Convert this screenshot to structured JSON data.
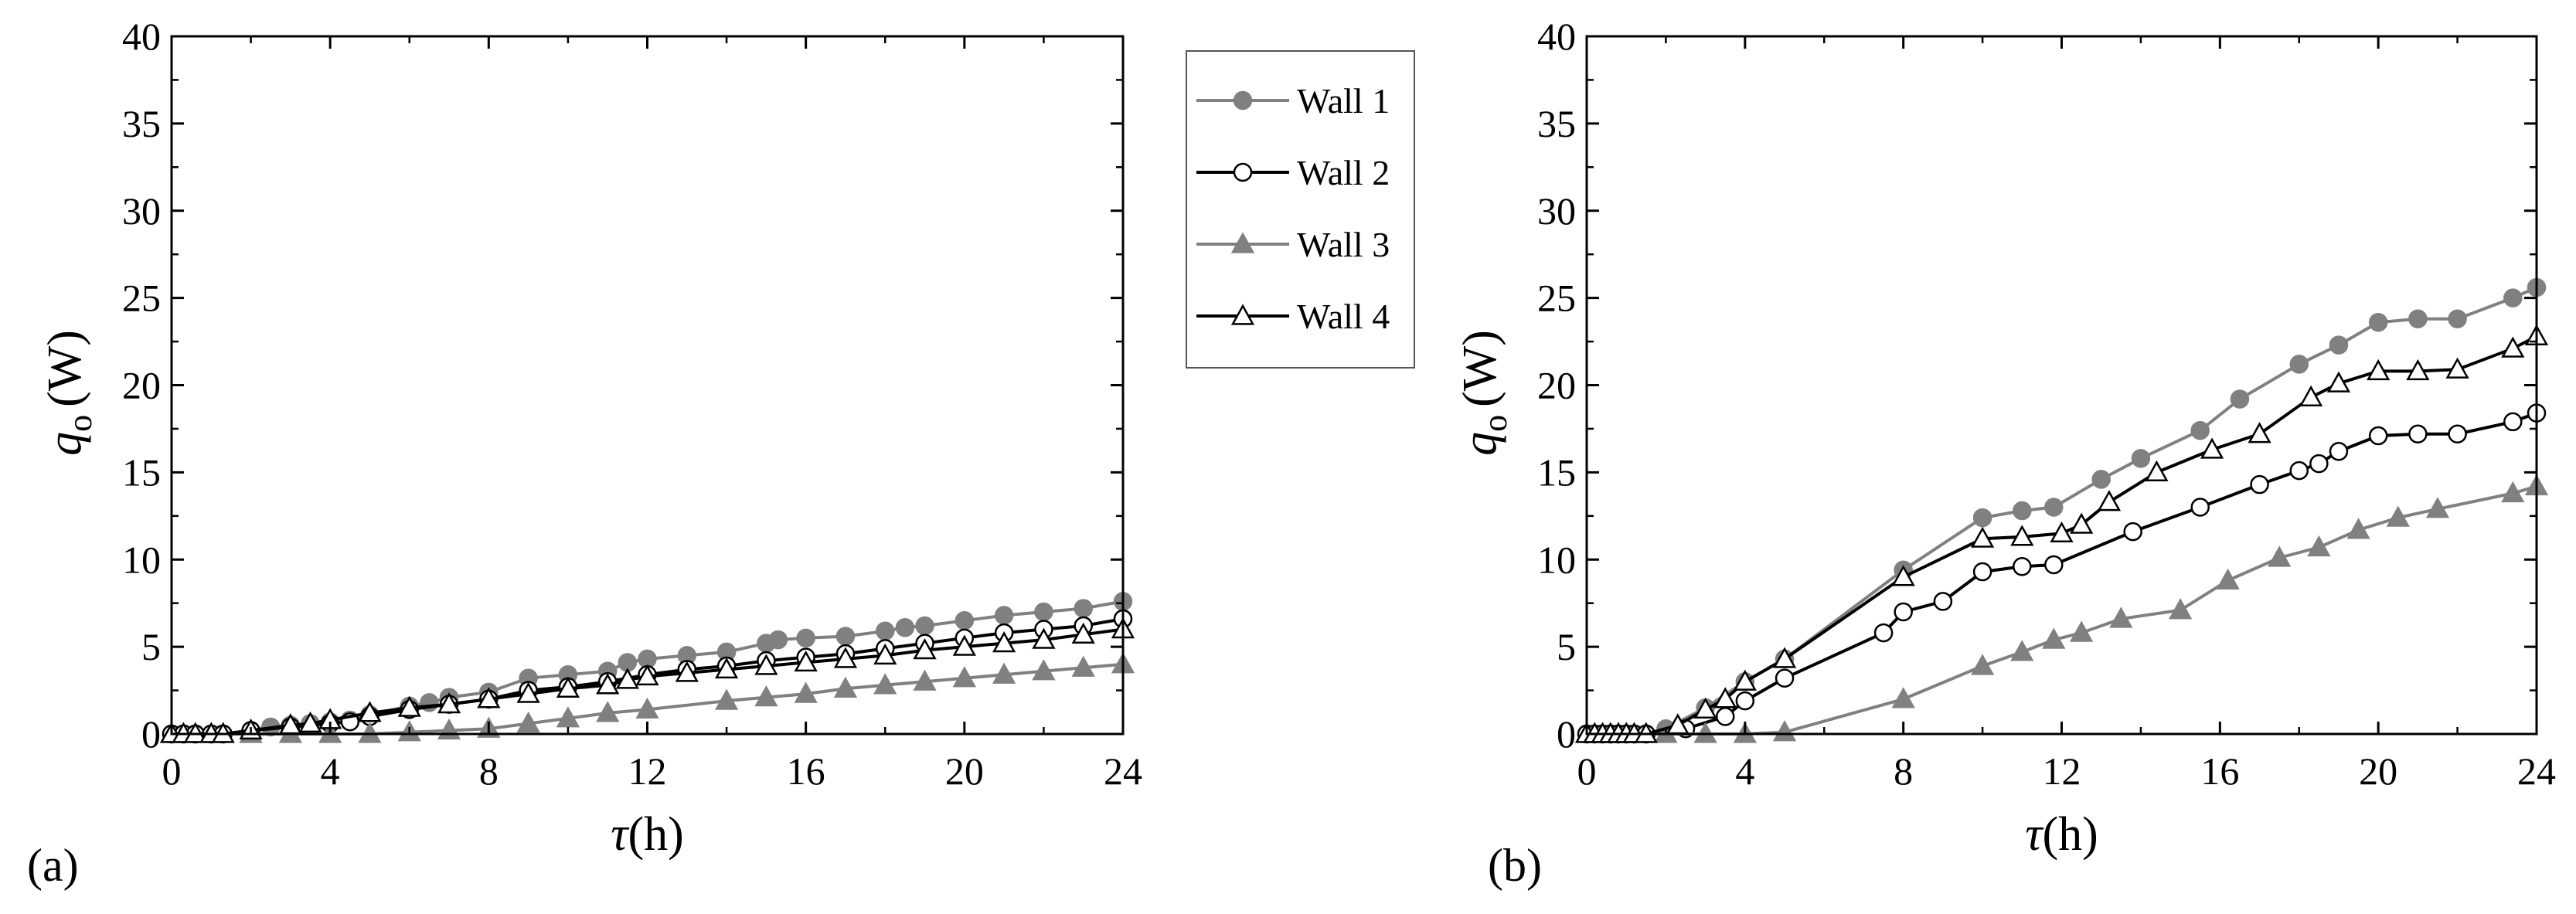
{
  "legend": [
    {
      "label": "Wall 1",
      "color": "#808080",
      "marker": "circle",
      "filled": true
    },
    {
      "label": "Wall 2",
      "color": "#000000",
      "marker": "circle",
      "filled": false
    },
    {
      "label": "Wall 3",
      "color": "#808080",
      "marker": "triangle",
      "filled": true
    },
    {
      "label": "Wall 4",
      "color": "#000000",
      "marker": "triangle",
      "filled": false
    }
  ],
  "chart_data": [
    {
      "type": "line",
      "panel_label": "(a)",
      "xlabel_sym": "τ",
      "xlabel_unit": "(h)",
      "ylabel_sym": "q",
      "ylabel_sub": "o",
      "ylabel_unit": "(W)",
      "xlim": [
        0,
        24
      ],
      "ylim": [
        0,
        40
      ],
      "xticks": [
        0,
        4,
        8,
        12,
        16,
        20,
        24
      ],
      "yticks": [
        0,
        5,
        10,
        15,
        20,
        25,
        30,
        35,
        40
      ],
      "series": [
        {
          "name": "Wall 1",
          "x": [
            0,
            0.3,
            0.6,
            1.0,
            1.3,
            2,
            2.5,
            3,
            3.5,
            4,
            4.5,
            5,
            6,
            6.5,
            7,
            8,
            9,
            10,
            11,
            11.5,
            12,
            13,
            14,
            15,
            15.3,
            16,
            17,
            18,
            18.5,
            19,
            20,
            21,
            22,
            23,
            24
          ],
          "y": [
            0,
            0,
            0,
            0,
            0,
            0.2,
            0.4,
            0.5,
            0.6,
            0.7,
            0.8,
            1.1,
            1.6,
            1.8,
            2.1,
            2.4,
            3.2,
            3.4,
            3.6,
            4.1,
            4.3,
            4.5,
            4.7,
            5.2,
            5.4,
            5.5,
            5.6,
            5.9,
            6.1,
            6.2,
            6.5,
            6.8,
            7.0,
            7.2,
            7.6
          ]
        },
        {
          "name": "Wall 2",
          "x": [
            0,
            0.3,
            0.6,
            1.0,
            1.3,
            2,
            3,
            4,
            4.5,
            5,
            6,
            7,
            8,
            9,
            10,
            11,
            12,
            13,
            14,
            15,
            16,
            17,
            18,
            19,
            20,
            21,
            22,
            23,
            24
          ],
          "y": [
            0,
            0,
            0,
            0,
            0,
            0.2,
            0.4,
            0.6,
            0.7,
            1.0,
            1.4,
            1.7,
            2.0,
            2.5,
            2.7,
            3.0,
            3.4,
            3.7,
            3.9,
            4.2,
            4.4,
            4.6,
            4.9,
            5.2,
            5.5,
            5.8,
            6.0,
            6.2,
            6.6
          ]
        },
        {
          "name": "Wall 3",
          "x": [
            0,
            1,
            2,
            3,
            4,
            5,
            6,
            7,
            8,
            9,
            10,
            11,
            12,
            14,
            15,
            16,
            17,
            18,
            19,
            20,
            21,
            22,
            23,
            24
          ],
          "y": [
            0,
            0,
            0,
            0,
            0,
            0,
            0.1,
            0.2,
            0.3,
            0.6,
            0.9,
            1.2,
            1.4,
            1.9,
            2.1,
            2.3,
            2.6,
            2.8,
            3.0,
            3.2,
            3.4,
            3.6,
            3.8,
            4.0
          ]
        },
        {
          "name": "Wall 4",
          "x": [
            0,
            0.3,
            0.6,
            1.0,
            1.3,
            2,
            3,
            3.5,
            4,
            5,
            6,
            7,
            8,
            9,
            10,
            11,
            11.5,
            12,
            13,
            14,
            15,
            16,
            17,
            18,
            19,
            20,
            21,
            22,
            23,
            24
          ],
          "y": [
            0,
            0,
            0,
            0,
            0,
            0.2,
            0.5,
            0.6,
            0.8,
            1.2,
            1.5,
            1.7,
            2.0,
            2.3,
            2.6,
            2.8,
            3.1,
            3.3,
            3.5,
            3.7,
            3.9,
            4.1,
            4.3,
            4.5,
            4.8,
            5.0,
            5.2,
            5.4,
            5.7,
            6.0
          ]
        }
      ]
    },
    {
      "type": "line",
      "panel_label": "(b)",
      "xlabel_sym": "τ",
      "xlabel_unit": "(h)",
      "ylabel_sym": "q",
      "ylabel_sub": "o",
      "ylabel_unit": "(W)",
      "xlim": [
        0,
        24
      ],
      "ylim": [
        0,
        40
      ],
      "xticks": [
        0,
        4,
        8,
        12,
        16,
        20,
        24
      ],
      "yticks": [
        0,
        5,
        10,
        15,
        20,
        25,
        30,
        35,
        40
      ],
      "series": [
        {
          "name": "Wall 1",
          "x": [
            0,
            0.2,
            0.4,
            0.6,
            0.8,
            1.0,
            1.2,
            1.5,
            2,
            3,
            4,
            5,
            8,
            10,
            11,
            11.8,
            13,
            14,
            15.5,
            16.5,
            18,
            19,
            20,
            21,
            22,
            23.4,
            24
          ],
          "y": [
            0,
            0,
            0,
            0,
            0,
            0,
            0,
            0,
            0.3,
            1.5,
            3.0,
            4.3,
            9.4,
            12.4,
            12.8,
            13.0,
            14.6,
            15.8,
            17.4,
            19.2,
            21.2,
            22.3,
            23.6,
            23.8,
            23.8,
            25.0,
            25.6
          ]
        },
        {
          "name": "Wall 2",
          "x": [
            0,
            0.2,
            0.4,
            0.6,
            0.8,
            1.0,
            1.2,
            1.5,
            2.5,
            3.5,
            4,
            5,
            7.5,
            8,
            9,
            10,
            11,
            11.8,
            13.8,
            15.5,
            17,
            18,
            18.5,
            19,
            20,
            21,
            22,
            23.4,
            24
          ],
          "y": [
            0,
            0,
            0,
            0,
            0,
            0,
            0,
            0,
            0.3,
            1.0,
            1.9,
            3.2,
            5.8,
            7.0,
            7.6,
            9.3,
            9.6,
            9.7,
            11.6,
            13.0,
            14.3,
            15.1,
            15.5,
            16.2,
            17.1,
            17.2,
            17.2,
            17.9,
            18.4
          ]
        },
        {
          "name": "Wall 3",
          "x": [
            0,
            1,
            2,
            3,
            4,
            5,
            8,
            10,
            11,
            11.8,
            12.5,
            13.5,
            15,
            16.2,
            17.5,
            18.5,
            19.5,
            20.5,
            21.5,
            23.4,
            24
          ],
          "y": [
            0,
            0,
            0,
            0,
            0,
            0.1,
            2.0,
            3.9,
            4.7,
            5.4,
            5.8,
            6.6,
            7.1,
            8.8,
            10.1,
            10.7,
            11.7,
            12.4,
            12.9,
            13.8,
            14.2
          ]
        },
        {
          "name": "Wall 4",
          "x": [
            0,
            0.2,
            0.4,
            0.6,
            0.8,
            1.0,
            1.2,
            1.5,
            2.3,
            3,
            3.5,
            4,
            5,
            8,
            10,
            11,
            12,
            12.5,
            13.2,
            14.4,
            15.8,
            17,
            18.3,
            19,
            20,
            21,
            22,
            23.4,
            24
          ],
          "y": [
            0,
            0,
            0,
            0,
            0,
            0,
            0,
            0,
            0.5,
            1.4,
            2.0,
            3.0,
            4.3,
            9.0,
            11.2,
            11.3,
            11.5,
            12.0,
            13.3,
            15.0,
            16.3,
            17.2,
            19.3,
            20.1,
            20.8,
            20.8,
            20.9,
            22.1,
            22.8
          ]
        }
      ]
    }
  ]
}
